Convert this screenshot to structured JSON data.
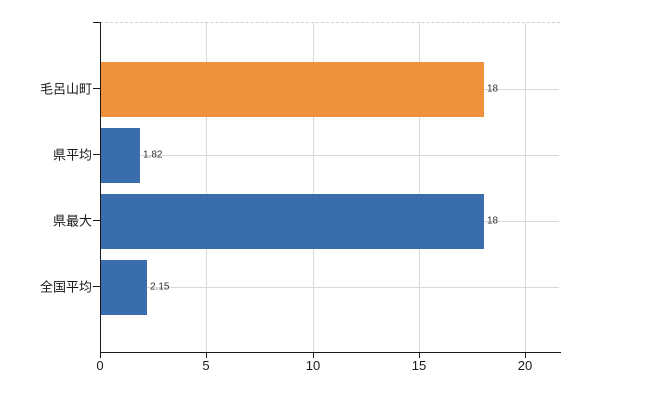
{
  "chart_data": {
    "type": "bar",
    "orientation": "horizontal",
    "title": "",
    "xlabel": "",
    "ylabel": "",
    "categories": [
      "毛呂山町",
      "県平均",
      "県最大",
      "全国平均"
    ],
    "values": [
      18,
      1.82,
      18,
      2.15
    ],
    "value_labels": [
      "18",
      "1.82",
      "18",
      "2.15"
    ],
    "bar_colors": [
      "#f0923c",
      "#3a6dad",
      "#3a6dad",
      "#3a6dad"
    ],
    "xlim": [
      0,
      20
    ],
    "x_ticks": [
      0,
      5,
      10,
      15,
      20
    ],
    "x_tick_labels": [
      "0",
      "5",
      "10",
      "15",
      "20"
    ],
    "grid": true,
    "legend": false,
    "colors": {
      "highlight_bar": "#f0923c",
      "default_bar": "#3a6dad",
      "gridline": "#d9d9d9",
      "axis": "#1a1a1a",
      "text": "#1a1a1a",
      "background": "#ffffff"
    }
  }
}
